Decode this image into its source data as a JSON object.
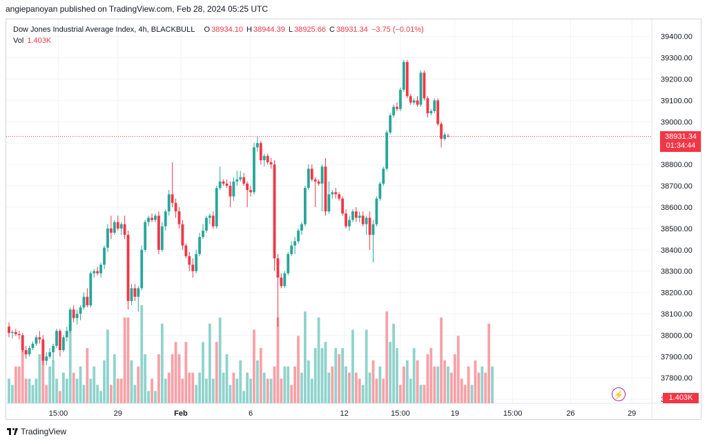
{
  "attribution": "angiepanoyan published on TradingView.com, Feb 28, 2024 05:25 UTC",
  "legend": {
    "symbol": "Dow Jones Industrial Average Index, 4h, BLACKBULL",
    "o_label": "O",
    "o_value": "38934.10",
    "h_label": "H",
    "h_value": "38944.39",
    "l_label": "L",
    "l_value": "38925.66",
    "c_label": "C",
    "c_value": "38931.34",
    "change": "−3.75 (−0.01%)",
    "vol_label": "Vol",
    "vol_value": "1.403K"
  },
  "price_tag": {
    "price": "38931.34",
    "countdown": "01:34:44"
  },
  "vol_tag": "1.403K",
  "footer": {
    "brand": "TradingView"
  },
  "colors": {
    "up": "#26a69a",
    "down": "#f23645",
    "up_vol": "#8fd3cc",
    "down_vol": "#f7a1a7",
    "grid": "#f0f3fa",
    "last_line": "#f23645"
  },
  "icons": {
    "replay": "lightning-icon",
    "brand": "tradingview-logo-icon"
  },
  "chart_data": {
    "type": "candlestick",
    "title": "Dow Jones Industrial Average Index, 4h, BLACKBULL",
    "ylim": [
      37600,
      39480
    ],
    "y_ticks": [
      "39400.00",
      "39300.00",
      "39200.00",
      "39100.00",
      "39000.00",
      "38900.00",
      "38800.00",
      "38700.00",
      "38600.00",
      "38500.00",
      "38400.00",
      "38300.00",
      "38200.00",
      "38100.00",
      "38000.00",
      "37900.00",
      "37800.00",
      "37700.00"
    ],
    "x_ticks": [
      "15:00",
      "29",
      "Feb",
      "6",
      "12",
      "15:00",
      "19",
      "15:00",
      "26",
      "29"
    ],
    "x_tick_bars": [
      14.5,
      32,
      50.5,
      71,
      98.5,
      115,
      131,
      148,
      165,
      183
    ],
    "last_price": 38931.34,
    "candles": [
      [
        38040,
        38060,
        37990,
        38010
      ],
      [
        38010,
        38025,
        37985,
        38015
      ],
      [
        38015,
        38030,
        37995,
        38005
      ],
      [
        38005,
        38020,
        37980,
        38000
      ],
      [
        38000,
        38010,
        37920,
        37930
      ],
      [
        37930,
        37950,
        37890,
        37910
      ],
      [
        37910,
        37950,
        37900,
        37940
      ],
      [
        37940,
        37970,
        37930,
        37960
      ],
      [
        37960,
        38000,
        37950,
        37990
      ],
      [
        37990,
        38020,
        37960,
        37980
      ],
      [
        37980,
        38000,
        37860,
        37880
      ],
      [
        37880,
        37920,
        37860,
        37900
      ],
      [
        37900,
        37940,
        37890,
        37920
      ],
      [
        37920,
        37960,
        37880,
        37950
      ],
      [
        37950,
        38030,
        37940,
        38020
      ],
      [
        38020,
        38030,
        37900,
        37930
      ],
      [
        37930,
        38000,
        37920,
        37990
      ],
      [
        37990,
        38040,
        37970,
        38020
      ],
      [
        38020,
        38130,
        38010,
        38120
      ],
      [
        38120,
        38140,
        38060,
        38080
      ],
      [
        38080,
        38120,
        38050,
        38100
      ],
      [
        38100,
        38140,
        38070,
        38130
      ],
      [
        38130,
        38200,
        38120,
        38180
      ],
      [
        38180,
        38220,
        38130,
        38140
      ],
      [
        38140,
        38300,
        38130,
        38290
      ],
      [
        38290,
        38310,
        38270,
        38300
      ],
      [
        38300,
        38320,
        38280,
        38290
      ],
      [
        38290,
        38340,
        38270,
        38330
      ],
      [
        38330,
        38420,
        38310,
        38410
      ],
      [
        38410,
        38520,
        38390,
        38500
      ],
      [
        38500,
        38560,
        38450,
        38480
      ],
      [
        38480,
        38540,
        38470,
        38530
      ],
      [
        38530,
        38560,
        38490,
        38500
      ],
      [
        38500,
        38530,
        38470,
        38520
      ],
      [
        38520,
        38560,
        38450,
        38470
      ],
      [
        38470,
        38490,
        38120,
        38160
      ],
      [
        38160,
        38240,
        38140,
        38220
      ],
      [
        38220,
        38240,
        38160,
        38180
      ],
      [
        38180,
        38230,
        38110,
        38220
      ],
      [
        38220,
        38420,
        38210,
        38400
      ],
      [
        38400,
        38540,
        38390,
        38530
      ],
      [
        38530,
        38560,
        38510,
        38550
      ],
      [
        38550,
        38570,
        38530,
        38540
      ],
      [
        38540,
        38570,
        38530,
        38560
      ],
      [
        38560,
        38580,
        38380,
        38400
      ],
      [
        38400,
        38530,
        38390,
        38510
      ],
      [
        38510,
        38590,
        38490,
        38580
      ],
      [
        38580,
        38680,
        38560,
        38660
      ],
      [
        38660,
        38810,
        38600,
        38620
      ],
      [
        38620,
        38640,
        38550,
        38580
      ],
      [
        38580,
        38600,
        38500,
        38520
      ],
      [
        38520,
        38540,
        38400,
        38420
      ],
      [
        38420,
        38430,
        38360,
        38370
      ],
      [
        38370,
        38390,
        38300,
        38330
      ],
      [
        38330,
        38360,
        38270,
        38300
      ],
      [
        38300,
        38400,
        38290,
        38380
      ],
      [
        38380,
        38480,
        38370,
        38460
      ],
      [
        38460,
        38520,
        38450,
        38490
      ],
      [
        38490,
        38560,
        38480,
        38550
      ],
      [
        38550,
        38570,
        38520,
        38560
      ],
      [
        38560,
        38580,
        38500,
        38510
      ],
      [
        38510,
        38700,
        38500,
        38690
      ],
      [
        38690,
        38790,
        38680,
        38720
      ],
      [
        38720,
        38730,
        38700,
        38710
      ],
      [
        38710,
        38730,
        38690,
        38700
      ],
      [
        38700,
        38720,
        38600,
        38650
      ],
      [
        38650,
        38740,
        38630,
        38720
      ],
      [
        38720,
        38770,
        38700,
        38730
      ],
      [
        38730,
        38770,
        38720,
        38740
      ],
      [
        38740,
        38760,
        38700,
        38710
      ],
      [
        38710,
        38720,
        38600,
        38680
      ],
      [
        38680,
        38700,
        38650,
        38670
      ],
      [
        38670,
        38900,
        38660,
        38880
      ],
      [
        38880,
        38930,
        38860,
        38900
      ],
      [
        38900,
        38910,
        38800,
        38820
      ],
      [
        38820,
        38850,
        38790,
        38840
      ],
      [
        38840,
        38850,
        38800,
        38810
      ],
      [
        38810,
        38830,
        38780,
        38800
      ],
      [
        38800,
        38820,
        38300,
        38360
      ],
      [
        38360,
        38380,
        38040,
        38270
      ],
      [
        38270,
        38290,
        38220,
        38230
      ],
      [
        38230,
        38300,
        38220,
        38290
      ],
      [
        38290,
        38390,
        38280,
        38380
      ],
      [
        38380,
        38440,
        38370,
        38420
      ],
      [
        38420,
        38460,
        38380,
        38440
      ],
      [
        38440,
        38500,
        38430,
        38490
      ],
      [
        38490,
        38530,
        38470,
        38520
      ],
      [
        38520,
        38700,
        38510,
        38690
      ],
      [
        38690,
        38800,
        38680,
        38780
      ],
      [
        38780,
        38800,
        38720,
        38730
      ],
      [
        38730,
        38740,
        38600,
        38720
      ],
      [
        38720,
        38730,
        38700,
        38710
      ],
      [
        38710,
        38800,
        38580,
        38790
      ],
      [
        38790,
        38830,
        38560,
        38580
      ],
      [
        38580,
        38720,
        38570,
        38660
      ],
      [
        38660,
        38680,
        38640,
        38670
      ],
      [
        38670,
        38690,
        38640,
        38660
      ],
      [
        38660,
        38670,
        38630,
        38640
      ],
      [
        38640,
        38650,
        38560,
        38570
      ],
      [
        38570,
        38590,
        38500,
        38510
      ],
      [
        38510,
        38560,
        38490,
        38540
      ],
      [
        38540,
        38590,
        38530,
        38580
      ],
      [
        38580,
        38600,
        38530,
        38550
      ],
      [
        38550,
        38580,
        38530,
        38560
      ],
      [
        38560,
        38580,
        38510,
        38520
      ],
      [
        38520,
        38560,
        38470,
        38550
      ],
      [
        38550,
        38580,
        38400,
        38470
      ],
      [
        38470,
        38540,
        38340,
        38520
      ],
      [
        38520,
        38650,
        38510,
        38640
      ],
      [
        38640,
        38720,
        38630,
        38710
      ],
      [
        38710,
        38790,
        38700,
        38780
      ],
      [
        38780,
        38960,
        38770,
        38950
      ],
      [
        38950,
        39040,
        38940,
        39030
      ],
      [
        39030,
        39080,
        39020,
        39070
      ],
      [
        39070,
        39090,
        39050,
        39060
      ],
      [
        39060,
        39160,
        39050,
        39150
      ],
      [
        39150,
        39290,
        39140,
        39280
      ],
      [
        39280,
        39290,
        39110,
        39120
      ],
      [
        39120,
        39130,
        39080,
        39090
      ],
      [
        39090,
        39110,
        39080,
        39100
      ],
      [
        39100,
        39120,
        39070,
        39080
      ],
      [
        39080,
        39240,
        39070,
        39230
      ],
      [
        39230,
        39240,
        39100,
        39110
      ],
      [
        39110,
        39120,
        39020,
        39040
      ],
      [
        39040,
        39060,
        39030,
        39050
      ],
      [
        39050,
        39110,
        39040,
        39100
      ],
      [
        39100,
        39110,
        38980,
        38990
      ],
      [
        38990,
        39000,
        38880,
        38920
      ],
      [
        38920,
        38950,
        38910,
        38940
      ],
      [
        38934.1,
        38944.39,
        38925.66,
        38931.34
      ]
    ],
    "volume": [
      [
        4,
        0
      ],
      [
        3,
        0
      ],
      [
        6,
        1
      ],
      [
        6,
        1
      ],
      [
        9,
        1
      ],
      [
        4,
        1
      ],
      [
        4,
        0
      ],
      [
        3,
        0
      ],
      [
        4,
        0
      ],
      [
        8,
        0
      ],
      [
        10,
        1
      ],
      [
        3,
        1
      ],
      [
        6,
        0
      ],
      [
        7,
        0
      ],
      [
        4,
        0
      ],
      [
        2,
        1
      ],
      [
        5,
        0
      ],
      [
        4,
        0
      ],
      [
        13,
        0
      ],
      [
        5,
        1
      ],
      [
        4,
        0
      ],
      [
        6,
        0
      ],
      [
        3,
        0
      ],
      [
        9,
        1
      ],
      [
        4,
        0
      ],
      [
        6,
        0
      ],
      [
        3,
        0
      ],
      [
        2,
        0
      ],
      [
        7,
        0
      ],
      [
        12,
        0
      ],
      [
        3,
        1
      ],
      [
        8,
        0
      ],
      [
        4,
        1
      ],
      [
        4,
        1
      ],
      [
        14,
        1
      ],
      [
        14,
        1
      ],
      [
        7,
        0
      ],
      [
        3,
        0
      ],
      [
        6,
        1
      ],
      [
        16,
        0
      ],
      [
        8,
        0
      ],
      [
        2,
        0
      ],
      [
        4,
        1
      ],
      [
        2,
        0
      ],
      [
        8,
        1
      ],
      [
        13,
        0
      ],
      [
        4,
        0
      ],
      [
        5,
        1
      ],
      [
        8,
        1
      ],
      [
        10,
        1
      ],
      [
        8,
        1
      ],
      [
        4,
        1
      ],
      [
        10,
        1
      ],
      [
        5,
        1
      ],
      [
        5,
        1
      ],
      [
        3,
        0
      ],
      [
        5,
        0
      ],
      [
        10,
        0
      ],
      [
        4,
        0
      ],
      [
        13,
        0
      ],
      [
        4,
        0
      ],
      [
        10,
        1
      ],
      [
        14,
        0
      ],
      [
        5,
        0
      ],
      [
        8,
        0
      ],
      [
        3,
        0
      ],
      [
        5,
        1
      ],
      [
        4,
        0
      ],
      [
        7,
        0
      ],
      [
        2,
        0
      ],
      [
        5,
        0
      ],
      [
        4,
        0
      ],
      [
        12,
        1
      ],
      [
        7,
        0
      ],
      [
        9,
        1
      ],
      [
        5,
        0
      ],
      [
        4,
        1
      ],
      [
        4,
        0
      ],
      [
        6,
        1
      ],
      [
        14,
        1
      ],
      [
        4,
        1
      ],
      [
        6,
        0
      ],
      [
        6,
        0
      ],
      [
        3,
        1
      ],
      [
        6,
        1
      ],
      [
        11,
        1
      ],
      [
        5,
        0
      ],
      [
        15,
        0
      ],
      [
        7,
        0
      ],
      [
        4,
        0
      ],
      [
        9,
        0
      ],
      [
        14,
        0
      ],
      [
        9,
        0
      ],
      [
        10,
        0
      ],
      [
        5,
        0
      ],
      [
        6,
        1
      ],
      [
        9,
        0
      ],
      [
        8,
        1
      ],
      [
        9,
        0
      ],
      [
        6,
        0
      ],
      [
        5,
        1
      ],
      [
        12,
        0
      ],
      [
        5,
        1
      ],
      [
        4,
        1
      ],
      [
        3,
        0
      ],
      [
        12,
        0
      ],
      [
        5,
        0
      ],
      [
        7,
        1
      ],
      [
        4,
        1
      ],
      [
        6,
        0
      ],
      [
        4,
        1
      ],
      [
        15,
        1
      ],
      [
        10,
        0
      ],
      [
        13,
        0
      ],
      [
        9,
        0
      ],
      [
        3,
        1
      ],
      [
        6,
        1
      ],
      [
        7,
        0
      ],
      [
        4,
        0
      ],
      [
        9,
        0
      ],
      [
        7,
        1
      ],
      [
        3,
        0
      ],
      [
        3,
        1
      ],
      [
        8,
        1
      ],
      [
        9,
        1
      ],
      [
        6,
        1
      ],
      [
        6,
        0
      ],
      [
        14,
        1
      ],
      [
        7,
        1
      ],
      [
        6,
        0
      ],
      [
        5,
        1
      ],
      [
        8,
        1
      ],
      [
        11,
        1
      ],
      [
        4,
        1
      ],
      [
        3,
        1
      ],
      [
        6,
        1
      ],
      [
        3,
        0
      ],
      [
        7,
        1
      ],
      [
        5,
        1
      ],
      [
        6,
        0
      ],
      [
        5,
        1
      ],
      [
        13,
        1
      ],
      [
        6,
        0
      ]
    ]
  }
}
